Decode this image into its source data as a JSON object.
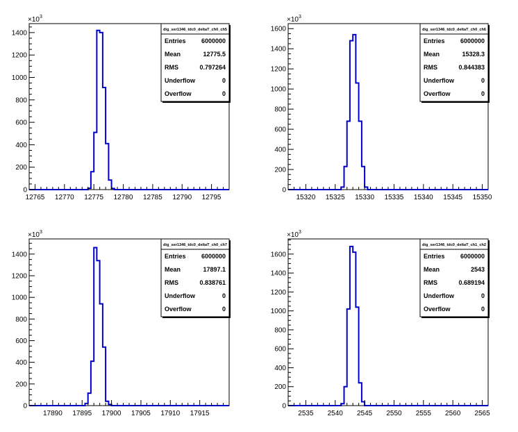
{
  "chart_data": [
    {
      "type": "histogram",
      "title": "dig_ser1346_tdc0_deltaT_ch0_ch5",
      "y_multiplier": "×10",
      "y_multiplier_exp": "3",
      "xlim": [
        12764,
        12798
      ],
      "ylim": [
        0,
        1480
      ],
      "x_ticks": [
        12765,
        12770,
        12775,
        12780,
        12785,
        12790,
        12795
      ],
      "y_ticks": [
        0,
        200,
        400,
        600,
        800,
        1000,
        1200,
        1400
      ],
      "bin_width": 0.5,
      "bins": [
        [
          12774,
          12
        ],
        [
          12774.5,
          160
        ],
        [
          12775,
          510
        ],
        [
          12775.5,
          1420
        ],
        [
          12776,
          1400
        ],
        [
          12776.5,
          910
        ],
        [
          12777,
          410
        ],
        [
          12777.5,
          85
        ],
        [
          12778,
          10
        ]
      ],
      "stats": [
        {
          "label": "Entries",
          "value": "6000000"
        },
        {
          "label": "Mean",
          "value": "12775.5"
        },
        {
          "label": "RMS",
          "value": "0.797264"
        },
        {
          "label": "Underflow",
          "value": "0"
        },
        {
          "label": "Overflow",
          "value": "0"
        }
      ]
    },
    {
      "type": "histogram",
      "title": "dig_ser1346_tdc0_deltaT_ch0_ch6",
      "y_multiplier": "×10",
      "y_multiplier_exp": "3",
      "xlim": [
        15317,
        15351
      ],
      "ylim": [
        0,
        1650
      ],
      "x_ticks": [
        15320,
        15325,
        15330,
        15335,
        15340,
        15345,
        15350
      ],
      "y_ticks": [
        0,
        200,
        400,
        600,
        800,
        1000,
        1200,
        1400,
        1600
      ],
      "bin_width": 0.5,
      "bins": [
        [
          15326,
          25
        ],
        [
          15326.5,
          230
        ],
        [
          15327,
          680
        ],
        [
          15327.5,
          1480
        ],
        [
          15328,
          1540
        ],
        [
          15328.5,
          1060
        ],
        [
          15329,
          680
        ],
        [
          15329.5,
          230
        ],
        [
          15330,
          25
        ]
      ],
      "stats": [
        {
          "label": "Entries",
          "value": "6000000"
        },
        {
          "label": "Mean",
          "value": "15328.3"
        },
        {
          "label": "RMS",
          "value": "0.844383"
        },
        {
          "label": "Underflow",
          "value": "0"
        },
        {
          "label": "Overflow",
          "value": "0"
        }
      ]
    },
    {
      "type": "histogram",
      "title": "dig_ser1346_tdc0_deltaT_ch0_ch7",
      "y_multiplier": "×10",
      "y_multiplier_exp": "3",
      "xlim": [
        17886,
        17920
      ],
      "ylim": [
        0,
        1540
      ],
      "x_ticks": [
        17890,
        17895,
        17900,
        17905,
        17910,
        17915
      ],
      "y_ticks": [
        0,
        200,
        400,
        600,
        800,
        1000,
        1200,
        1400
      ],
      "bin_width": 0.5,
      "bins": [
        [
          17895.5,
          20
        ],
        [
          17896,
          115
        ],
        [
          17896.5,
          410
        ],
        [
          17897,
          1460
        ],
        [
          17897.5,
          1340
        ],
        [
          17898,
          940
        ],
        [
          17898.5,
          540
        ],
        [
          17899,
          40
        ],
        [
          17899.5,
          10
        ]
      ],
      "stats": [
        {
          "label": "Entries",
          "value": "6000000"
        },
        {
          "label": "Mean",
          "value": "17897.1"
        },
        {
          "label": "RMS",
          "value": "0.838761"
        },
        {
          "label": "Underflow",
          "value": "0"
        },
        {
          "label": "Overflow",
          "value": "0"
        }
      ]
    },
    {
      "type": "histogram",
      "title": "dig_ser1346_tdc0_deltaT_ch1_ch2",
      "y_multiplier": "×10",
      "y_multiplier_exp": "3",
      "xlim": [
        2532,
        2566
      ],
      "ylim": [
        0,
        1760
      ],
      "x_ticks": [
        2535,
        2540,
        2545,
        2550,
        2555,
        2560,
        2565
      ],
      "y_ticks": [
        0,
        200,
        400,
        600,
        800,
        1000,
        1200,
        1400,
        1600
      ],
      "bin_width": 0.5,
      "bins": [
        [
          2541,
          20
        ],
        [
          2541.5,
          200
        ],
        [
          2542,
          1020
        ],
        [
          2542.5,
          1680
        ],
        [
          2543,
          1620
        ],
        [
          2543.5,
          1040
        ],
        [
          2544,
          240
        ],
        [
          2544.5,
          40
        ]
      ],
      "stats": [
        {
          "label": "Entries",
          "value": "6000000"
        },
        {
          "label": "Mean",
          "value": "2543"
        },
        {
          "label": "RMS",
          "value": "0.689194"
        },
        {
          "label": "Underflow",
          "value": "0"
        },
        {
          "label": "Overflow",
          "value": "0"
        }
      ]
    }
  ],
  "colors": {
    "histogram_line": "#0000cc",
    "axis": "#000000",
    "background": "#ffffff"
  }
}
